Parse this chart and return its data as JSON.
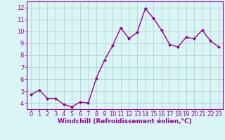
{
  "x": [
    0,
    1,
    2,
    3,
    4,
    5,
    6,
    7,
    8,
    9,
    10,
    11,
    12,
    13,
    14,
    15,
    16,
    17,
    18,
    19,
    20,
    21,
    22,
    23
  ],
  "y": [
    4.7,
    5.1,
    4.4,
    4.4,
    3.9,
    3.7,
    4.1,
    4.0,
    6.1,
    7.6,
    8.8,
    10.3,
    9.4,
    9.9,
    11.9,
    11.1,
    10.1,
    8.9,
    8.7,
    9.5,
    9.4,
    10.1,
    9.2,
    8.7
  ],
  "line_color": "#990099",
  "marker": "D",
  "marker_size": 2.0,
  "bg_color": "#d9f5f5",
  "grid_color": "#aacccc",
  "xlabel": "Windchill (Refroidissement éolien,°C)",
  "xlabel_color": "#990099",
  "tick_color": "#990099",
  "axis_color": "#990099",
  "ylim": [
    3.5,
    12.5
  ],
  "xlim": [
    -0.5,
    23.5
  ],
  "yticks": [
    4,
    5,
    6,
    7,
    8,
    9,
    10,
    11,
    12
  ],
  "xticks": [
    0,
    1,
    2,
    3,
    4,
    5,
    6,
    7,
    8,
    9,
    10,
    11,
    12,
    13,
    14,
    15,
    16,
    17,
    18,
    19,
    20,
    21,
    22,
    23
  ],
  "line_width": 1.0,
  "tick_fontsize": 6.0,
  "xlabel_fontsize": 6.5
}
